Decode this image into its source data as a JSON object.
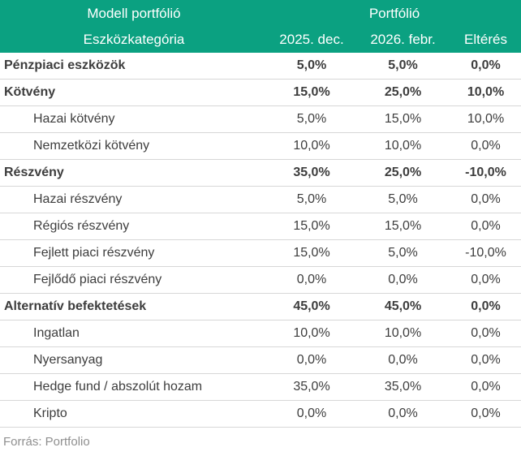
{
  "colors": {
    "header_bg": "#0ba181",
    "header_text": "#ffffff",
    "body_text": "#3d3d3d",
    "divider": "#d7d7d7",
    "source_text": "#8f8f8f"
  },
  "header": {
    "group_left": "Modell portfólió",
    "group_right": "Portfólió",
    "columns": [
      "Eszközkategória",
      "2025. dec.",
      "2026. febr.",
      "Eltérés"
    ]
  },
  "rows": [
    {
      "label": "Pénzpiaci eszközök",
      "values": [
        "5,0%",
        "5,0%",
        "0,0%"
      ],
      "bold": true,
      "indent": false
    },
    {
      "label": "Kötvény",
      "values": [
        "15,0%",
        "25,0%",
        "10,0%"
      ],
      "bold": true,
      "indent": false
    },
    {
      "label": "Hazai kötvény",
      "values": [
        "5,0%",
        "15,0%",
        "10,0%"
      ],
      "bold": false,
      "indent": true
    },
    {
      "label": "Nemzetközi kötvény",
      "values": [
        "10,0%",
        "10,0%",
        "0,0%"
      ],
      "bold": false,
      "indent": true
    },
    {
      "label": "Részvény",
      "values": [
        "35,0%",
        "25,0%",
        "-10,0%"
      ],
      "bold": true,
      "indent": false
    },
    {
      "label": "Hazai részvény",
      "values": [
        "5,0%",
        "5,0%",
        "0,0%"
      ],
      "bold": false,
      "indent": true
    },
    {
      "label": "Régiós részvény",
      "values": [
        "15,0%",
        "15,0%",
        "0,0%"
      ],
      "bold": false,
      "indent": true
    },
    {
      "label": "Fejlett piaci részvény",
      "values": [
        "15,0%",
        "5,0%",
        "-10,0%"
      ],
      "bold": false,
      "indent": true
    },
    {
      "label": "Fejlődő piaci részvény",
      "values": [
        "0,0%",
        "0,0%",
        "0,0%"
      ],
      "bold": false,
      "indent": true
    },
    {
      "label": "Alternatív befektetések",
      "values": [
        "45,0%",
        "45,0%",
        "0,0%"
      ],
      "bold": true,
      "indent": false
    },
    {
      "label": "Ingatlan",
      "values": [
        "10,0%",
        "10,0%",
        "0,0%"
      ],
      "bold": false,
      "indent": true
    },
    {
      "label": "Nyersanyag",
      "values": [
        "0,0%",
        "0,0%",
        "0,0%"
      ],
      "bold": false,
      "indent": true
    },
    {
      "label": "Hedge fund / abszolút hozam",
      "values": [
        "35,0%",
        "35,0%",
        "0,0%"
      ],
      "bold": false,
      "indent": true
    },
    {
      "label": "Kripto",
      "values": [
        "0,0%",
        "0,0%",
        "0,0%"
      ],
      "bold": false,
      "indent": true
    }
  ],
  "source": "Forrás: Portfolio",
  "chart_data": {
    "type": "table",
    "title": "Modell portfólió — Portfólió",
    "columns": [
      "Eszközkategória",
      "2025. dec.",
      "2026. febr.",
      "Eltérés"
    ],
    "rows": [
      {
        "category": "Pénzpiaci eszközök",
        "level": "group",
        "dec_2025": 5.0,
        "febr_2026": 5.0,
        "elteres": 0.0
      },
      {
        "category": "Kötvény",
        "level": "group",
        "dec_2025": 15.0,
        "febr_2026": 25.0,
        "elteres": 10.0
      },
      {
        "category": "Hazai kötvény",
        "level": "sub",
        "dec_2025": 5.0,
        "febr_2026": 15.0,
        "elteres": 10.0
      },
      {
        "category": "Nemzetközi kötvény",
        "level": "sub",
        "dec_2025": 10.0,
        "febr_2026": 10.0,
        "elteres": 0.0
      },
      {
        "category": "Részvény",
        "level": "group",
        "dec_2025": 35.0,
        "febr_2026": 25.0,
        "elteres": -10.0
      },
      {
        "category": "Hazai részvény",
        "level": "sub",
        "dec_2025": 5.0,
        "febr_2026": 5.0,
        "elteres": 0.0
      },
      {
        "category": "Régiós részvény",
        "level": "sub",
        "dec_2025": 15.0,
        "febr_2026": 15.0,
        "elteres": 0.0
      },
      {
        "category": "Fejlett piaci részvény",
        "level": "sub",
        "dec_2025": 15.0,
        "febr_2026": 5.0,
        "elteres": -10.0
      },
      {
        "category": "Fejlődő piaci részvény",
        "level": "sub",
        "dec_2025": 0.0,
        "febr_2026": 0.0,
        "elteres": 0.0
      },
      {
        "category": "Alternatív befektetések",
        "level": "group",
        "dec_2025": 45.0,
        "febr_2026": 45.0,
        "elteres": 0.0
      },
      {
        "category": "Ingatlan",
        "level": "sub",
        "dec_2025": 10.0,
        "febr_2026": 10.0,
        "elteres": 0.0
      },
      {
        "category": "Nyersanyag",
        "level": "sub",
        "dec_2025": 0.0,
        "febr_2026": 0.0,
        "elteres": 0.0
      },
      {
        "category": "Hedge fund / abszolút hozam",
        "level": "sub",
        "dec_2025": 35.0,
        "febr_2026": 35.0,
        "elteres": 0.0
      },
      {
        "category": "Kripto",
        "level": "sub",
        "dec_2025": 0.0,
        "febr_2026": 0.0,
        "elteres": 0.0
      }
    ],
    "value_format": "percent, comma decimal",
    "source": "Forrás: Portfolio"
  }
}
